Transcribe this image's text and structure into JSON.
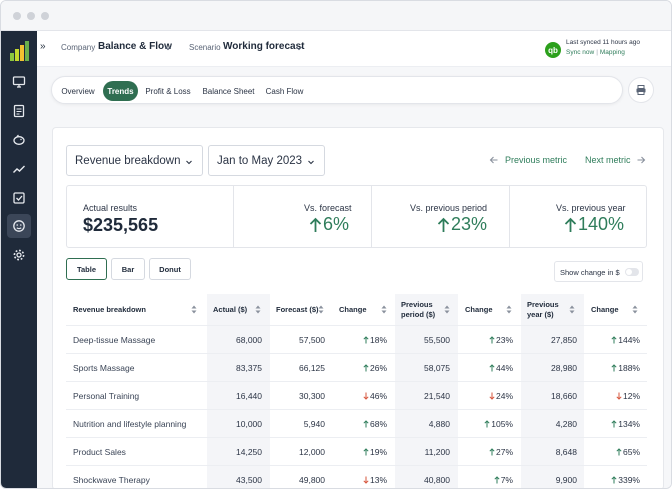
{
  "colors": {
    "accent": "#2f6e51",
    "positive": "#2f7d5b",
    "negative": "#d6543b",
    "sidebar": "#1f2a3a",
    "quickbooks": "#2ca01c"
  },
  "sidebar": {
    "logo": "bar-chart-logo",
    "items": [
      {
        "icon": "monitor-icon"
      },
      {
        "icon": "report-icon"
      },
      {
        "icon": "piggy-bank-icon"
      },
      {
        "icon": "trend-line-icon"
      },
      {
        "icon": "checklist-icon"
      },
      {
        "icon": "face-icon",
        "active": true
      },
      {
        "icon": "gear-icon"
      }
    ]
  },
  "topbar": {
    "expand_icon": "»",
    "company_label": "Company",
    "company_value": "Balance & Flow",
    "scenario_label": "Scenario",
    "scenario_value": "Working forecast",
    "qb_badge": "qb",
    "sync_status": "Last synced 11 hours ago",
    "sync_now": "Sync now",
    "sync_sep": "|",
    "mapping": "Mapping"
  },
  "tabs": [
    {
      "label": "Overview",
      "active": false
    },
    {
      "label": "Trends",
      "active": true
    },
    {
      "label": "Profit & Loss",
      "active": false
    },
    {
      "label": "Balance Sheet",
      "active": false
    },
    {
      "label": "Cash Flow",
      "active": false
    }
  ],
  "controls": {
    "metric_dropdown": "Revenue breakdown",
    "period_dropdown": "Jan to May 2023",
    "previous_metric": "Previous metric",
    "next_metric": "Next metric"
  },
  "summary": {
    "actual_label": "Actual results",
    "actual_value": "$235,565",
    "vs_forecast_label": "Vs. forecast",
    "vs_forecast_value": "6%",
    "vs_prev_period_label": "Vs. previous period",
    "vs_prev_period_value": "23%",
    "vs_prev_year_label": "Vs. previous year",
    "vs_prev_year_value": "140%"
  },
  "view_buttons": [
    {
      "label": "Table",
      "active": true
    },
    {
      "label": "Bar",
      "active": false
    },
    {
      "label": "Donut",
      "active": false
    }
  ],
  "show_change_label": "Show change in $",
  "table": {
    "headers": [
      "Revenue breakdown",
      "Actual ($)",
      "Forecast ($)",
      "Change",
      "Previous period ($)",
      "Change",
      "Previous year ($)",
      "Change"
    ],
    "rows": [
      {
        "name": "Deep-tissue Massage",
        "actual": "68,000",
        "forecast": "57,500",
        "chg1": "18%",
        "dir1": "up",
        "prev_period": "55,500",
        "chg2": "23%",
        "dir2": "up",
        "prev_year": "27,850",
        "chg3": "144%",
        "dir3": "up"
      },
      {
        "name": "Sports Massage",
        "actual": "83,375",
        "forecast": "66,125",
        "chg1": "26%",
        "dir1": "up",
        "prev_period": "58,075",
        "chg2": "44%",
        "dir2": "up",
        "prev_year": "28,980",
        "chg3": "188%",
        "dir3": "up"
      },
      {
        "name": "Personal Training",
        "actual": "16,440",
        "forecast": "30,300",
        "chg1": "46%",
        "dir1": "down",
        "prev_period": "21,540",
        "chg2": "24%",
        "dir2": "down",
        "prev_year": "18,660",
        "chg3": "12%",
        "dir3": "down"
      },
      {
        "name": "Nutrition and lifestyle planning",
        "actual": "10,000",
        "forecast": "5,940",
        "chg1": "68%",
        "dir1": "up",
        "prev_period": "4,880",
        "chg2": "105%",
        "dir2": "up",
        "prev_year": "4,280",
        "chg3": "134%",
        "dir3": "up"
      },
      {
        "name": "Product Sales",
        "actual": "14,250",
        "forecast": "12,000",
        "chg1": "19%",
        "dir1": "up",
        "prev_period": "11,200",
        "chg2": "27%",
        "dir2": "up",
        "prev_year": "8,648",
        "chg3": "65%",
        "dir3": "up"
      },
      {
        "name": "Shockwave Therapy",
        "actual": "43,500",
        "forecast": "49,800",
        "chg1": "13%",
        "dir1": "down",
        "prev_period": "40,800",
        "chg2": "7%",
        "dir2": "up",
        "prev_year": "9,900",
        "chg3": "339%",
        "dir3": "up"
      }
    ]
  }
}
